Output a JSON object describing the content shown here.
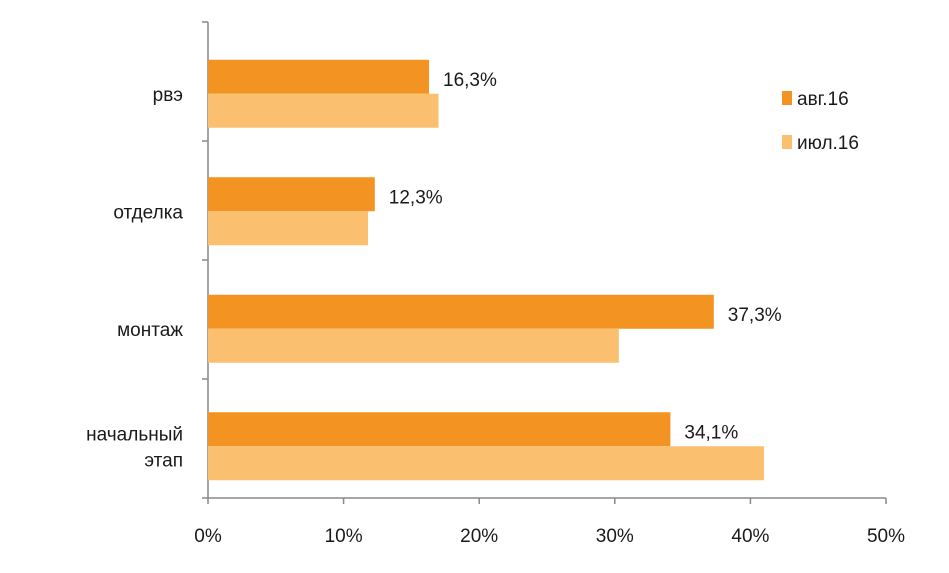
{
  "chart_data": {
    "type": "bar",
    "orientation": "horizontal",
    "categories": [
      "рвэ",
      "отделка",
      "монтаж",
      "начальный этап"
    ],
    "category_lines": [
      [
        "рвэ"
      ],
      [
        "отделка"
      ],
      [
        "монтаж"
      ],
      [
        "начальный",
        "этап"
      ]
    ],
    "series": [
      {
        "name": "авг.16",
        "values": [
          16.3,
          12.3,
          37.3,
          34.1
        ],
        "color": "#F39322"
      },
      {
        "name": "июл.16",
        "values": [
          17.0,
          11.8,
          30.3,
          41.0
        ],
        "color": "#FBBF70"
      }
    ],
    "data_labels": [
      "16,3%",
      "12,3%",
      "37,3%",
      "34,1%"
    ],
    "x_ticks": [
      "0%",
      "10%",
      "20%",
      "30%",
      "40%",
      "50%"
    ],
    "xlim": [
      0,
      50
    ],
    "title": "",
    "xlabel": "",
    "ylabel": "",
    "grid": false,
    "legend_position": "top-right"
  }
}
